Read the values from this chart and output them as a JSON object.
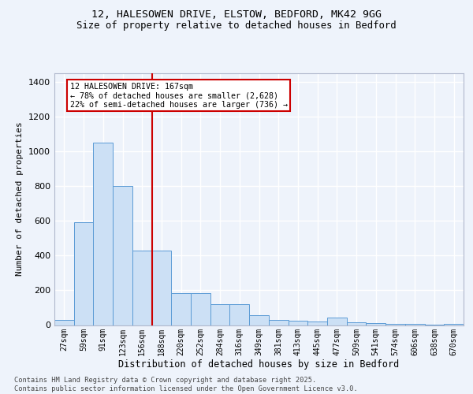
{
  "title_line1": "12, HALESOWEN DRIVE, ELSTOW, BEDFORD, MK42 9GG",
  "title_line2": "Size of property relative to detached houses in Bedford",
  "xlabel": "Distribution of detached houses by size in Bedford",
  "ylabel": "Number of detached properties",
  "categories": [
    "27sqm",
    "59sqm",
    "91sqm",
    "123sqm",
    "156sqm",
    "188sqm",
    "220sqm",
    "252sqm",
    "284sqm",
    "316sqm",
    "349sqm",
    "381sqm",
    "413sqm",
    "445sqm",
    "477sqm",
    "509sqm",
    "541sqm",
    "574sqm",
    "606sqm",
    "638sqm",
    "670sqm"
  ],
  "values": [
    30,
    590,
    1050,
    800,
    430,
    430,
    185,
    185,
    120,
    120,
    55,
    30,
    25,
    20,
    45,
    18,
    12,
    8,
    5,
    3,
    5
  ],
  "bar_color": "#cce0f5",
  "bar_edge_color": "#5b9bd5",
  "background_color": "#eef3fb",
  "vline_x_index": 4.5,
  "vline_color": "#cc0000",
  "annotation_text": "12 HALESOWEN DRIVE: 167sqm\n← 78% of detached houses are smaller (2,628)\n22% of semi-detached houses are larger (736) →",
  "annotation_box_color": "#ffffff",
  "annotation_box_edge": "#cc0000",
  "ylim": [
    0,
    1450
  ],
  "yticks": [
    0,
    200,
    400,
    600,
    800,
    1000,
    1200,
    1400
  ],
  "footer_line1": "Contains HM Land Registry data © Crown copyright and database right 2025.",
  "footer_line2": "Contains public sector information licensed under the Open Government Licence v3.0."
}
